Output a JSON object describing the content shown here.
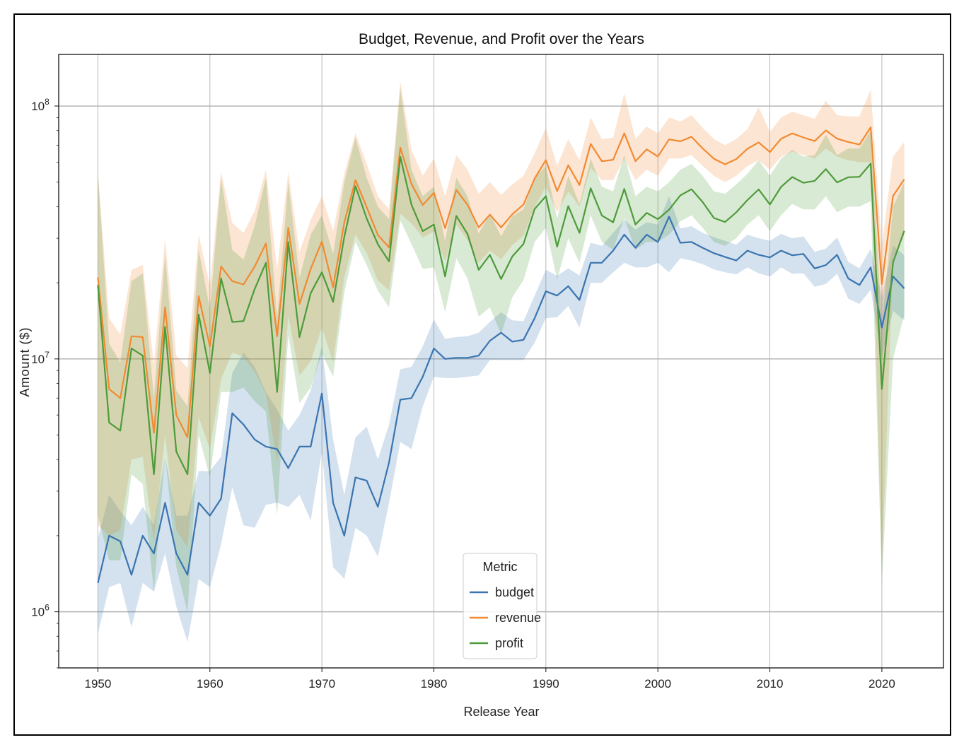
{
  "chart_data": {
    "type": "line",
    "title": "Budget, Revenue, and Profit over the Years",
    "xlabel": "Release Year",
    "ylabel": "Amount ($)",
    "yscale": "log",
    "ylim": [
      600000,
      160000000
    ],
    "xlim": [
      1946.5,
      2025.5
    ],
    "xticks": [
      1950,
      1960,
      1970,
      1980,
      1990,
      2000,
      2010,
      2020
    ],
    "xtick_labels": [
      "1950",
      "1960",
      "1970",
      "1980",
      "1990",
      "2000",
      "2010",
      "2020"
    ],
    "yticks": [
      1000000,
      10000000,
      100000000
    ],
    "ytick_labels": [
      {
        "base": "10",
        "exp": "6"
      },
      {
        "base": "10",
        "exp": "7"
      },
      {
        "base": "10",
        "exp": "8"
      }
    ],
    "grid": true,
    "legend": {
      "title": "Metric",
      "placement": "bottom-center"
    },
    "x": [
      1950,
      1951,
      1952,
      1953,
      1954,
      1955,
      1956,
      1957,
      1958,
      1959,
      1960,
      1961,
      1962,
      1963,
      1964,
      1965,
      1966,
      1967,
      1968,
      1969,
      1970,
      1971,
      1972,
      1973,
      1974,
      1975,
      1976,
      1977,
      1978,
      1979,
      1980,
      1981,
      1982,
      1983,
      1984,
      1985,
      1986,
      1987,
      1988,
      1989,
      1990,
      1991,
      1992,
      1993,
      1994,
      1995,
      1996,
      1997,
      1998,
      1999,
      2000,
      2001,
      2002,
      2003,
      2004,
      2005,
      2006,
      2007,
      2008,
      2009,
      2010,
      2011,
      2012,
      2013,
      2014,
      2015,
      2016,
      2017,
      2018,
      2019,
      2020,
      2021,
      2022
    ],
    "series": [
      {
        "name": "budget",
        "color": "#3a75b0",
        "values": [
          1300000,
          2000000,
          1900000,
          1400000,
          2000000,
          1700000,
          2700000,
          1700000,
          1400000,
          2700000,
          2400000,
          2800000,
          6100000,
          5500000,
          4800000,
          4500000,
          4400000,
          3700000,
          4500000,
          4500000,
          7300000,
          2700000,
          2000000,
          3400000,
          3300000,
          2600000,
          3900000,
          6900000,
          7000000,
          8500000,
          11000000,
          10000000,
          10100000,
          10100000,
          10300000,
          11800000,
          12700000,
          11700000,
          11900000,
          14500000,
          18500000,
          17800000,
          19400000,
          17100000,
          24000000,
          24000000,
          26800000,
          31000000,
          27500000,
          31000000,
          29000000,
          36500000,
          28800000,
          29000000,
          27500000,
          26200000,
          25300000,
          24500000,
          26800000,
          25800000,
          25200000,
          26800000,
          25700000,
          26000000,
          22800000,
          23500000,
          25800000,
          20800000,
          19600000,
          23000000,
          13300000,
          21200000,
          19000000
        ],
        "lower": [
          820000,
          1250000,
          1300000,
          870000,
          1300000,
          1200000,
          1700000,
          1050000,
          760000,
          1350000,
          1250000,
          1850000,
          3100000,
          2200000,
          2150000,
          2650000,
          2700000,
          2600000,
          2900000,
          2300000,
          4300000,
          1500000,
          1350000,
          2150000,
          2000000,
          1650000,
          2700000,
          4700000,
          4400000,
          6500000,
          8500000,
          8400000,
          8400000,
          8500000,
          8600000,
          9900000,
          9900000,
          9900000,
          9900000,
          11600000,
          14500000,
          14600000,
          16200000,
          13300000,
          20000000,
          20000000,
          22000000,
          24000000,
          23000000,
          23000000,
          24000000,
          22000000,
          25000000,
          24500000,
          23700000,
          22600000,
          22000000,
          21600000,
          23000000,
          21800000,
          21200000,
          23000000,
          21700000,
          21800000,
          19300000,
          19800000,
          21700000,
          17300000,
          16500000,
          18800000,
          10100000,
          15500000,
          14200000
        ],
        "upper": [
          1950000,
          2900000,
          2500000,
          2200000,
          2600000,
          2200000,
          4100000,
          2400000,
          2400000,
          3600000,
          3600000,
          4100000,
          8800000,
          10600000,
          9300000,
          7400000,
          6300000,
          5200000,
          6000000,
          7500000,
          11200000,
          4800000,
          2900000,
          4900000,
          5400000,
          4000000,
          5500000,
          9100000,
          9300000,
          11200000,
          14300000,
          12000000,
          12200000,
          12300000,
          12700000,
          14000000,
          15300000,
          14200000,
          14100000,
          17800000,
          22500000,
          21300000,
          22800000,
          21400000,
          28800000,
          28000000,
          31500000,
          35500000,
          32500000,
          34700000,
          34000000,
          44000000,
          32800000,
          33500000,
          31500000,
          30300000,
          29300000,
          28300000,
          31000000,
          30000000,
          29300000,
          31200000,
          30000000,
          30500000,
          26500000,
          27300000,
          30200000,
          24200000,
          22800000,
          27300000,
          17700000,
          28000000,
          25700000
        ]
      },
      {
        "name": "revenue",
        "color": "#f18a32",
        "values": [
          21000000,
          7600000,
          7000000,
          12300000,
          12200000,
          5100000,
          16000000,
          6000000,
          4900000,
          17700000,
          11200000,
          23200000,
          20300000,
          19700000,
          23200000,
          28600000,
          12300000,
          33000000,
          16500000,
          22700000,
          29100000,
          19200000,
          34600000,
          51000000,
          39800000,
          30900000,
          27600000,
          68500000,
          49200000,
          40600000,
          45400000,
          32900000,
          46600000,
          40700000,
          33100000,
          37200000,
          33100000,
          37300000,
          40800000,
          51700000,
          61100000,
          46100000,
          58300000,
          48700000,
          70800000,
          60500000,
          61300000,
          78000000,
          60500000,
          67400000,
          63200000,
          73800000,
          72500000,
          75600000,
          68000000,
          61900000,
          58800000,
          61700000,
          67800000,
          71800000,
          65800000,
          74200000,
          77900000,
          75100000,
          72700000,
          80100000,
          74300000,
          72100000,
          70400000,
          82400000,
          19800000,
          44100000,
          51300000
        ],
        "lower": [
          2200000,
          2000000,
          2100000,
          4000000,
          4100000,
          1900000,
          5000000,
          2100000,
          1800000,
          5900000,
          4400000,
          8300000,
          10600000,
          10200000,
          8900000,
          7300000,
          3900000,
          14800000,
          8600000,
          9800000,
          13300000,
          9700000,
          21000000,
          31000000,
          26200000,
          20400000,
          18700000,
          37500000,
          34300000,
          30200000,
          32000000,
          24300000,
          34000000,
          29500000,
          24000000,
          26800000,
          24800000,
          28200000,
          30700000,
          40000000,
          48000000,
          38000000,
          46000000,
          40000000,
          57000000,
          51000000,
          51000000,
          62000000,
          51000000,
          56000000,
          53000000,
          62000000,
          62000000,
          64000000,
          58000000,
          53000000,
          50000000,
          53000000,
          58000000,
          61000000,
          56000000,
          63000000,
          66000000,
          64000000,
          62000000,
          68000000,
          63000000,
          61000000,
          60000000,
          60000000,
          1500000,
          25000000,
          31000000
        ],
        "upper": [
          55000000,
          14500000,
          12500000,
          22500000,
          23500000,
          9500000,
          30000000,
          10300000,
          9200000,
          31000000,
          19500000,
          55000000,
          34500000,
          31500000,
          38500000,
          56000000,
          22500000,
          55000000,
          26500000,
          35500000,
          44000000,
          32000000,
          54000000,
          78000000,
          59000000,
          44000000,
          39000000,
          125000000,
          67000000,
          53000000,
          62000000,
          44000000,
          64000000,
          56000000,
          45000000,
          50000000,
          44500000,
          49000000,
          53000000,
          65000000,
          82000000,
          58000000,
          74000000,
          61000000,
          90000000,
          74000000,
          75000000,
          112000000,
          74000000,
          83000000,
          78000000,
          90000000,
          87000000,
          92000000,
          82000000,
          74000000,
          70000000,
          74000000,
          81000000,
          99000000,
          79000000,
          90000000,
          95000000,
          92000000,
          89000000,
          105000000,
          92000000,
          91000000,
          91000000,
          116000000,
          28000000,
          63000000,
          72000000
        ]
      },
      {
        "name": "profit",
        "color": "#4d9b3a",
        "values": [
          19600000,
          5600000,
          5200000,
          11000000,
          10300000,
          3500000,
          13400000,
          4300000,
          3500000,
          15000000,
          8800000,
          20800000,
          14000000,
          14100000,
          18900000,
          24000000,
          7400000,
          29000000,
          12200000,
          18200000,
          22000000,
          16800000,
          30400000,
          48200000,
          35900000,
          28400000,
          24300000,
          63000000,
          40700000,
          32000000,
          34000000,
          21200000,
          36800000,
          31200000,
          22500000,
          25800000,
          20700000,
          25400000,
          28500000,
          39200000,
          44000000,
          27800000,
          40200000,
          31500000,
          47300000,
          36900000,
          34700000,
          47000000,
          34000000,
          37800000,
          35700000,
          38900000,
          44300000,
          46900000,
          41700000,
          36100000,
          34800000,
          38000000,
          42500000,
          46800000,
          40800000,
          47900000,
          52400000,
          49700000,
          50600000,
          56300000,
          49900000,
          52300000,
          52500000,
          59200000,
          7600000,
          24100000,
          32100000
        ],
        "lower": [
          2400000,
          1600000,
          1600000,
          3500000,
          3200000,
          1200000,
          4200000,
          1500000,
          1000000,
          5000000,
          3400000,
          7400000,
          7400000,
          7700000,
          6800000,
          6200000,
          2400000,
          12500000,
          6700000,
          7700000,
          10500000,
          8500000,
          18300000,
          29000000,
          23500000,
          18600000,
          16000000,
          35300000,
          28500000,
          22700000,
          23000000,
          15300000,
          25000000,
          20800000,
          14700000,
          16000000,
          12500000,
          17500000,
          20500000,
          29000000,
          33000000,
          20600000,
          30000000,
          24000000,
          37000000,
          29000000,
          27000000,
          36000000,
          27000000,
          29000000,
          29000000,
          31000000,
          35000000,
          37000000,
          33000000,
          29000000,
          28000000,
          30000000,
          34000000,
          37000000,
          32000000,
          37000000,
          41000000,
          39000000,
          39000000,
          44000000,
          38000000,
          40000000,
          40000000,
          42000000,
          1300000,
          10000000,
          15000000
        ],
        "upper": [
          54000000,
          11500000,
          9700000,
          20300000,
          21800000,
          7000000,
          26000000,
          7500000,
          6500000,
          27000000,
          15800000,
          52000000,
          27000000,
          24700000,
          33600000,
          52000000,
          14500000,
          50000000,
          21000000,
          31000000,
          37000000,
          26000000,
          50000000,
          75000000,
          52000000,
          40000000,
          35700000,
          118000000,
          56000000,
          44000000,
          48000000,
          29200000,
          52000000,
          44000000,
          31300000,
          37500000,
          30500000,
          36600000,
          39000000,
          52000000,
          58000000,
          36000000,
          53000000,
          41000000,
          62000000,
          48000000,
          46000000,
          64000000,
          44000000,
          48000000,
          46000000,
          50000000,
          56000000,
          59000000,
          53000000,
          46000000,
          45000000,
          49000000,
          54000000,
          61000000,
          53000000,
          62000000,
          67000000,
          63000000,
          64000000,
          77000000,
          64000000,
          68000000,
          68000000,
          80000000,
          13500000,
          40000000,
          50000000
        ]
      }
    ]
  }
}
